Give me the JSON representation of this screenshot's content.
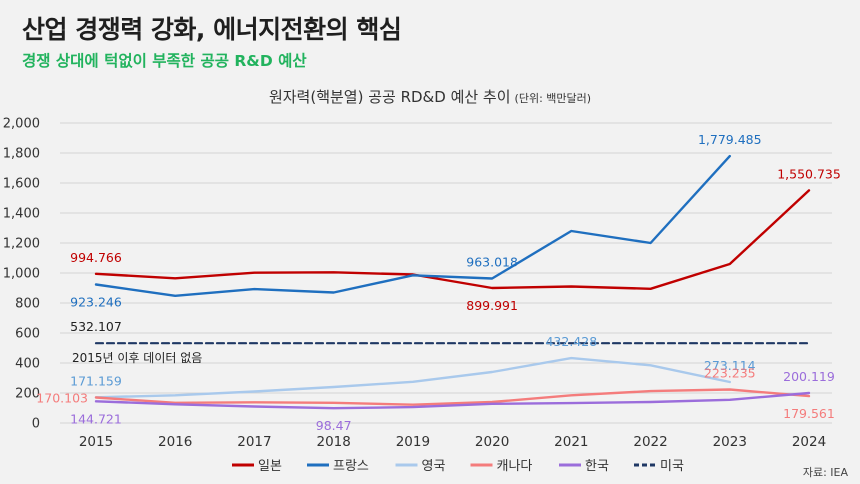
{
  "header": {
    "title": "산업 경쟁력 강화, 에너지전환의 핵심",
    "subtitle": "경쟁 상대에 턱없이 부족한 공공 R&D 예산",
    "source": "자료: IEA"
  },
  "chart_data": {
    "type": "line",
    "title": "원자력(핵분열) 공공 RD&D 예산 추이",
    "unit_label": "(단위: 백만달러)",
    "categories": [
      "2015",
      "2016",
      "2017",
      "2018",
      "2019",
      "2020",
      "2021",
      "2022",
      "2023",
      "2024"
    ],
    "ylim": [
      0,
      2000
    ],
    "y_ticks": [
      0,
      200,
      400,
      600,
      800,
      1000,
      1200,
      1400,
      1600,
      1800,
      2000
    ],
    "y_tick_labels": [
      "0",
      "200",
      "400",
      "600",
      "800",
      "1,000",
      "1,200",
      "1,400",
      "1,600",
      "1,800",
      "2,000"
    ],
    "grid": true,
    "legend_position": "bottom",
    "series": [
      {
        "name": "일본",
        "color": "#c00000",
        "dash": false,
        "values": [
          994.766,
          965,
          1002,
          1005,
          990,
          899.991,
          910,
          895,
          1060,
          1550.735
        ],
        "labels": [
          {
            "index": 0,
            "text": "994.766",
            "pos": "above"
          },
          {
            "index": 5,
            "text": "899.991",
            "pos": "below"
          },
          {
            "index": 9,
            "text": "1,550.735",
            "pos": "above"
          }
        ]
      },
      {
        "name": "프랑스",
        "color": "#1f6fbf",
        "dash": false,
        "values": [
          923.246,
          848,
          893,
          870,
          985,
          963.018,
          1280,
          1200,
          1779.485,
          null
        ],
        "labels": [
          {
            "index": 0,
            "text": "923.246",
            "pos": "below"
          },
          {
            "index": 5,
            "text": "963.018",
            "pos": "above"
          },
          {
            "index": 8,
            "text": "1,779.485",
            "pos": "above"
          }
        ]
      },
      {
        "name": "영국",
        "color": "#a9c9ec",
        "dash": false,
        "values": [
          171.159,
          185,
          210,
          240,
          275,
          340,
          432.428,
          385,
          273.114,
          null
        ],
        "labels": [
          {
            "index": 0,
            "text": "171.159",
            "pos": "above"
          },
          {
            "index": 6,
            "text": "432.428",
            "pos": "above"
          },
          {
            "index": 8,
            "text": "273.114",
            "pos": "above"
          }
        ]
      },
      {
        "name": "캐나다",
        "color": "#f47c7c",
        "dash": false,
        "values": [
          170.103,
          135,
          138,
          135,
          122,
          140,
          185,
          213,
          223.235,
          179.561
        ],
        "labels": [
          {
            "index": 0,
            "text": "170.103",
            "pos": "left"
          },
          {
            "index": 8,
            "text": "223.235",
            "pos": "above"
          },
          {
            "index": 9,
            "text": "179.561",
            "pos": "below"
          }
        ]
      },
      {
        "name": "한국",
        "color": "#9b6ddb",
        "dash": false,
        "values": [
          144.721,
          125,
          110,
          98.47,
          106,
          128,
          133,
          140,
          155,
          200.119
        ],
        "labels": [
          {
            "index": 0,
            "text": "144.721",
            "pos": "below"
          },
          {
            "index": 3,
            "text": "98.47",
            "pos": "below"
          },
          {
            "index": 9,
            "text": "200.119",
            "pos": "above"
          }
        ]
      },
      {
        "name": "미국",
        "color": "#1f3864",
        "dash": true,
        "values": [
          532.107,
          532.107,
          532.107,
          532.107,
          532.107,
          532.107,
          532.107,
          532.107,
          532.107,
          532.107
        ],
        "labels": [
          {
            "index": 0,
            "text": "532.107",
            "pos": "above"
          }
        ]
      }
    ],
    "annotation": "2015년 이후 데이터 없음"
  }
}
